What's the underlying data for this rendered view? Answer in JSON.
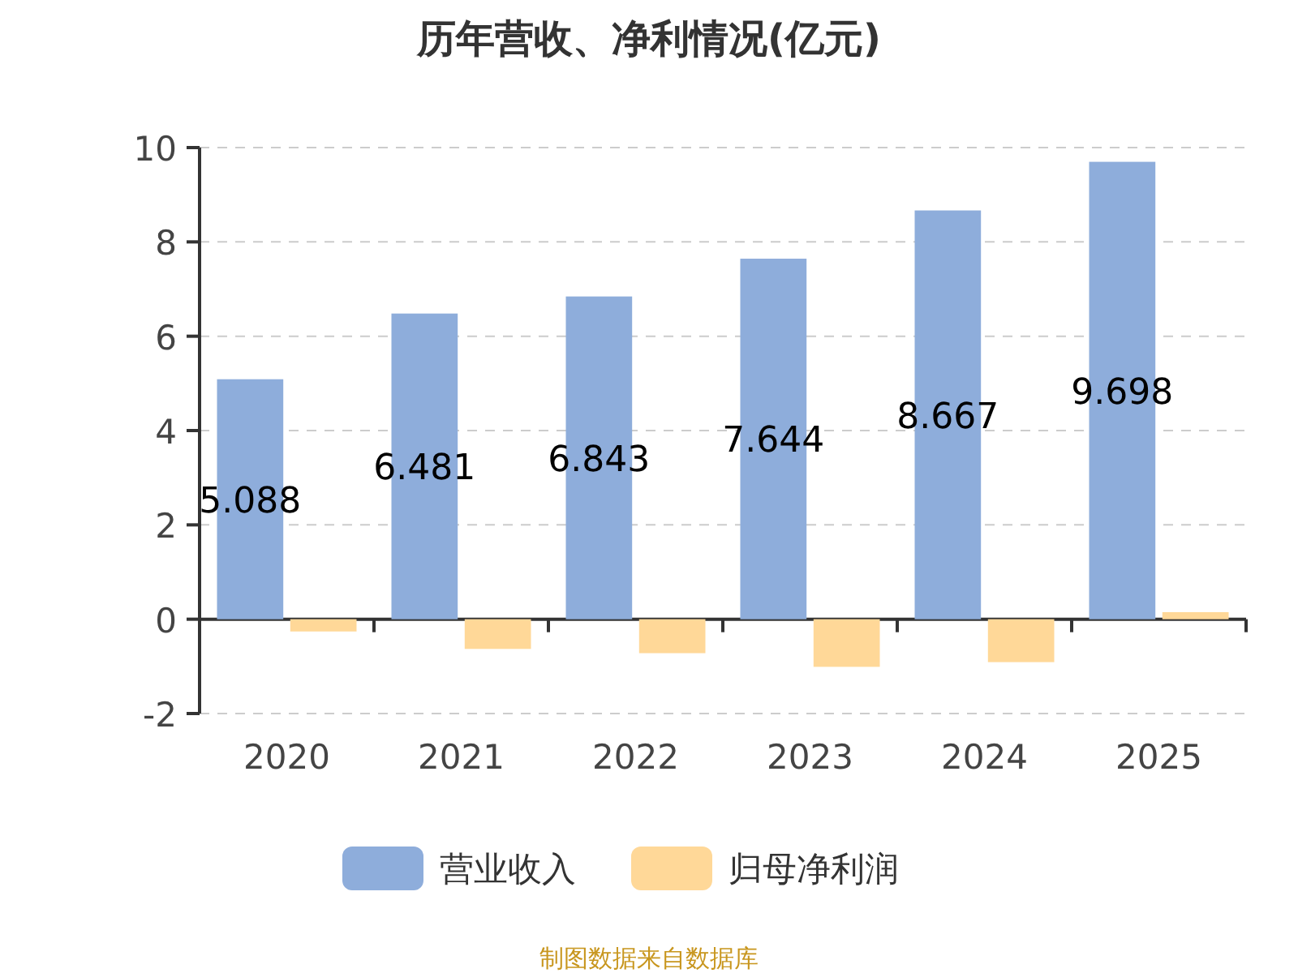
{
  "chart_data": {
    "type": "bar",
    "title": "历年营收、净利情况(亿元)",
    "categories": [
      "2020",
      "2021",
      "2022",
      "2023",
      "2024",
      "2025"
    ],
    "series": [
      {
        "name": "营业收入",
        "color": "#8eaddb",
        "values": [
          5.088,
          6.481,
          6.843,
          7.644,
          8.667,
          9.698
        ],
        "value_labels": [
          "5.088",
          "6.481",
          "6.843",
          "7.644",
          "8.667",
          "9.698"
        ]
      },
      {
        "name": "归母净利润",
        "color": "#ffd898",
        "values": [
          -0.26,
          -0.63,
          -0.72,
          -1.01,
          -0.91,
          0.15
        ]
      }
    ],
    "ylim": [
      -2,
      10
    ],
    "yticks": [
      -2,
      0,
      2,
      4,
      6,
      8,
      10
    ],
    "grid": "y",
    "legend": "bottom",
    "annotations": [
      "制图数据来自数据库"
    ]
  }
}
